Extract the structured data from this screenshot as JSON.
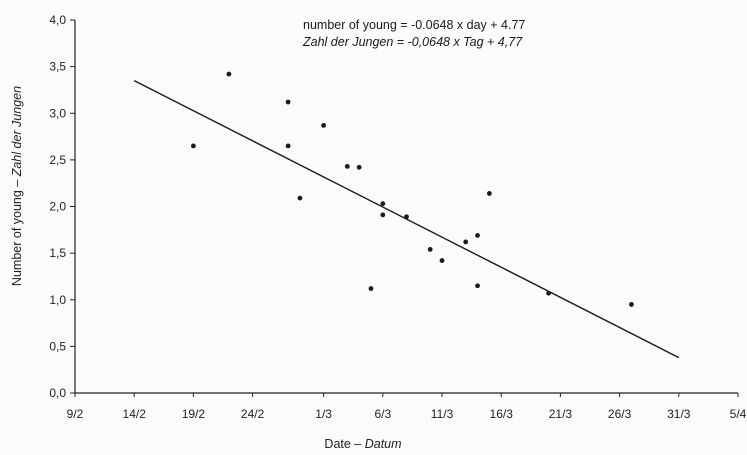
{
  "chart_data": {
    "type": "scatter",
    "title": "",
    "annotations": {
      "equation_en": "number of young = -0.0648 x day + 4.77",
      "equation_de": "Zahl der Jungen = -0,0648 x Tag + 4,77"
    },
    "ylabel": {
      "prefix": "Number of young – ",
      "italic": "Zahl der Jungen"
    },
    "xlabel": {
      "prefix": "Date – ",
      "italic": "Datum"
    },
    "x_tick_labels": [
      "9/2",
      "14/2",
      "19/2",
      "24/2",
      "1/3",
      "6/3",
      "11/3",
      "16/3",
      "21/3",
      "26/3",
      "31/3",
      "5/4"
    ],
    "x_ticks": [
      "2000-02-09",
      "2000-02-14",
      "2000-02-19",
      "2000-02-24",
      "2000-03-01",
      "2000-03-06",
      "2000-03-11",
      "2000-03-16",
      "2000-03-21",
      "2000-03-26",
      "2000-03-31",
      "2000-04-05"
    ],
    "y_tick_labels": [
      "0,0",
      "0,5",
      "1,0",
      "1,5",
      "2,0",
      "2,5",
      "3,0",
      "3,5",
      "4,0"
    ],
    "y_ticks": [
      0,
      0.5,
      1.0,
      1.5,
      2.0,
      2.5,
      3.0,
      3.5,
      4.0
    ],
    "xlim": [
      "2000-02-09",
      "2000-04-05"
    ],
    "ylim": [
      0,
      4.0
    ],
    "points": [
      {
        "x": "2000-02-19",
        "y": 2.65
      },
      {
        "x": "2000-02-22",
        "y": 3.42
      },
      {
        "x": "2000-02-27",
        "y": 3.12
      },
      {
        "x": "2000-02-27",
        "y": 2.65
      },
      {
        "x": "2000-02-28",
        "y": 2.09
      },
      {
        "x": "2000-03-01",
        "y": 2.87
      },
      {
        "x": "2000-03-03",
        "y": 2.43
      },
      {
        "x": "2000-03-04",
        "y": 2.42
      },
      {
        "x": "2000-03-05",
        "y": 1.12
      },
      {
        "x": "2000-03-06",
        "y": 1.91
      },
      {
        "x": "2000-03-06",
        "y": 2.03
      },
      {
        "x": "2000-03-08",
        "y": 1.89
      },
      {
        "x": "2000-03-10",
        "y": 1.54
      },
      {
        "x": "2000-03-11",
        "y": 1.42
      },
      {
        "x": "2000-03-13",
        "y": 1.62
      },
      {
        "x": "2000-03-14",
        "y": 1.69
      },
      {
        "x": "2000-03-14",
        "y": 1.15
      },
      {
        "x": "2000-03-15",
        "y": 2.14
      },
      {
        "x": "2000-03-20",
        "y": 1.07
      },
      {
        "x": "2000-03-27",
        "y": 0.95
      }
    ],
    "regression_line": {
      "x": [
        "2000-02-14",
        "2000-03-31"
      ],
      "y": [
        3.35,
        0.38
      ]
    },
    "grid": false,
    "legend": "none"
  }
}
